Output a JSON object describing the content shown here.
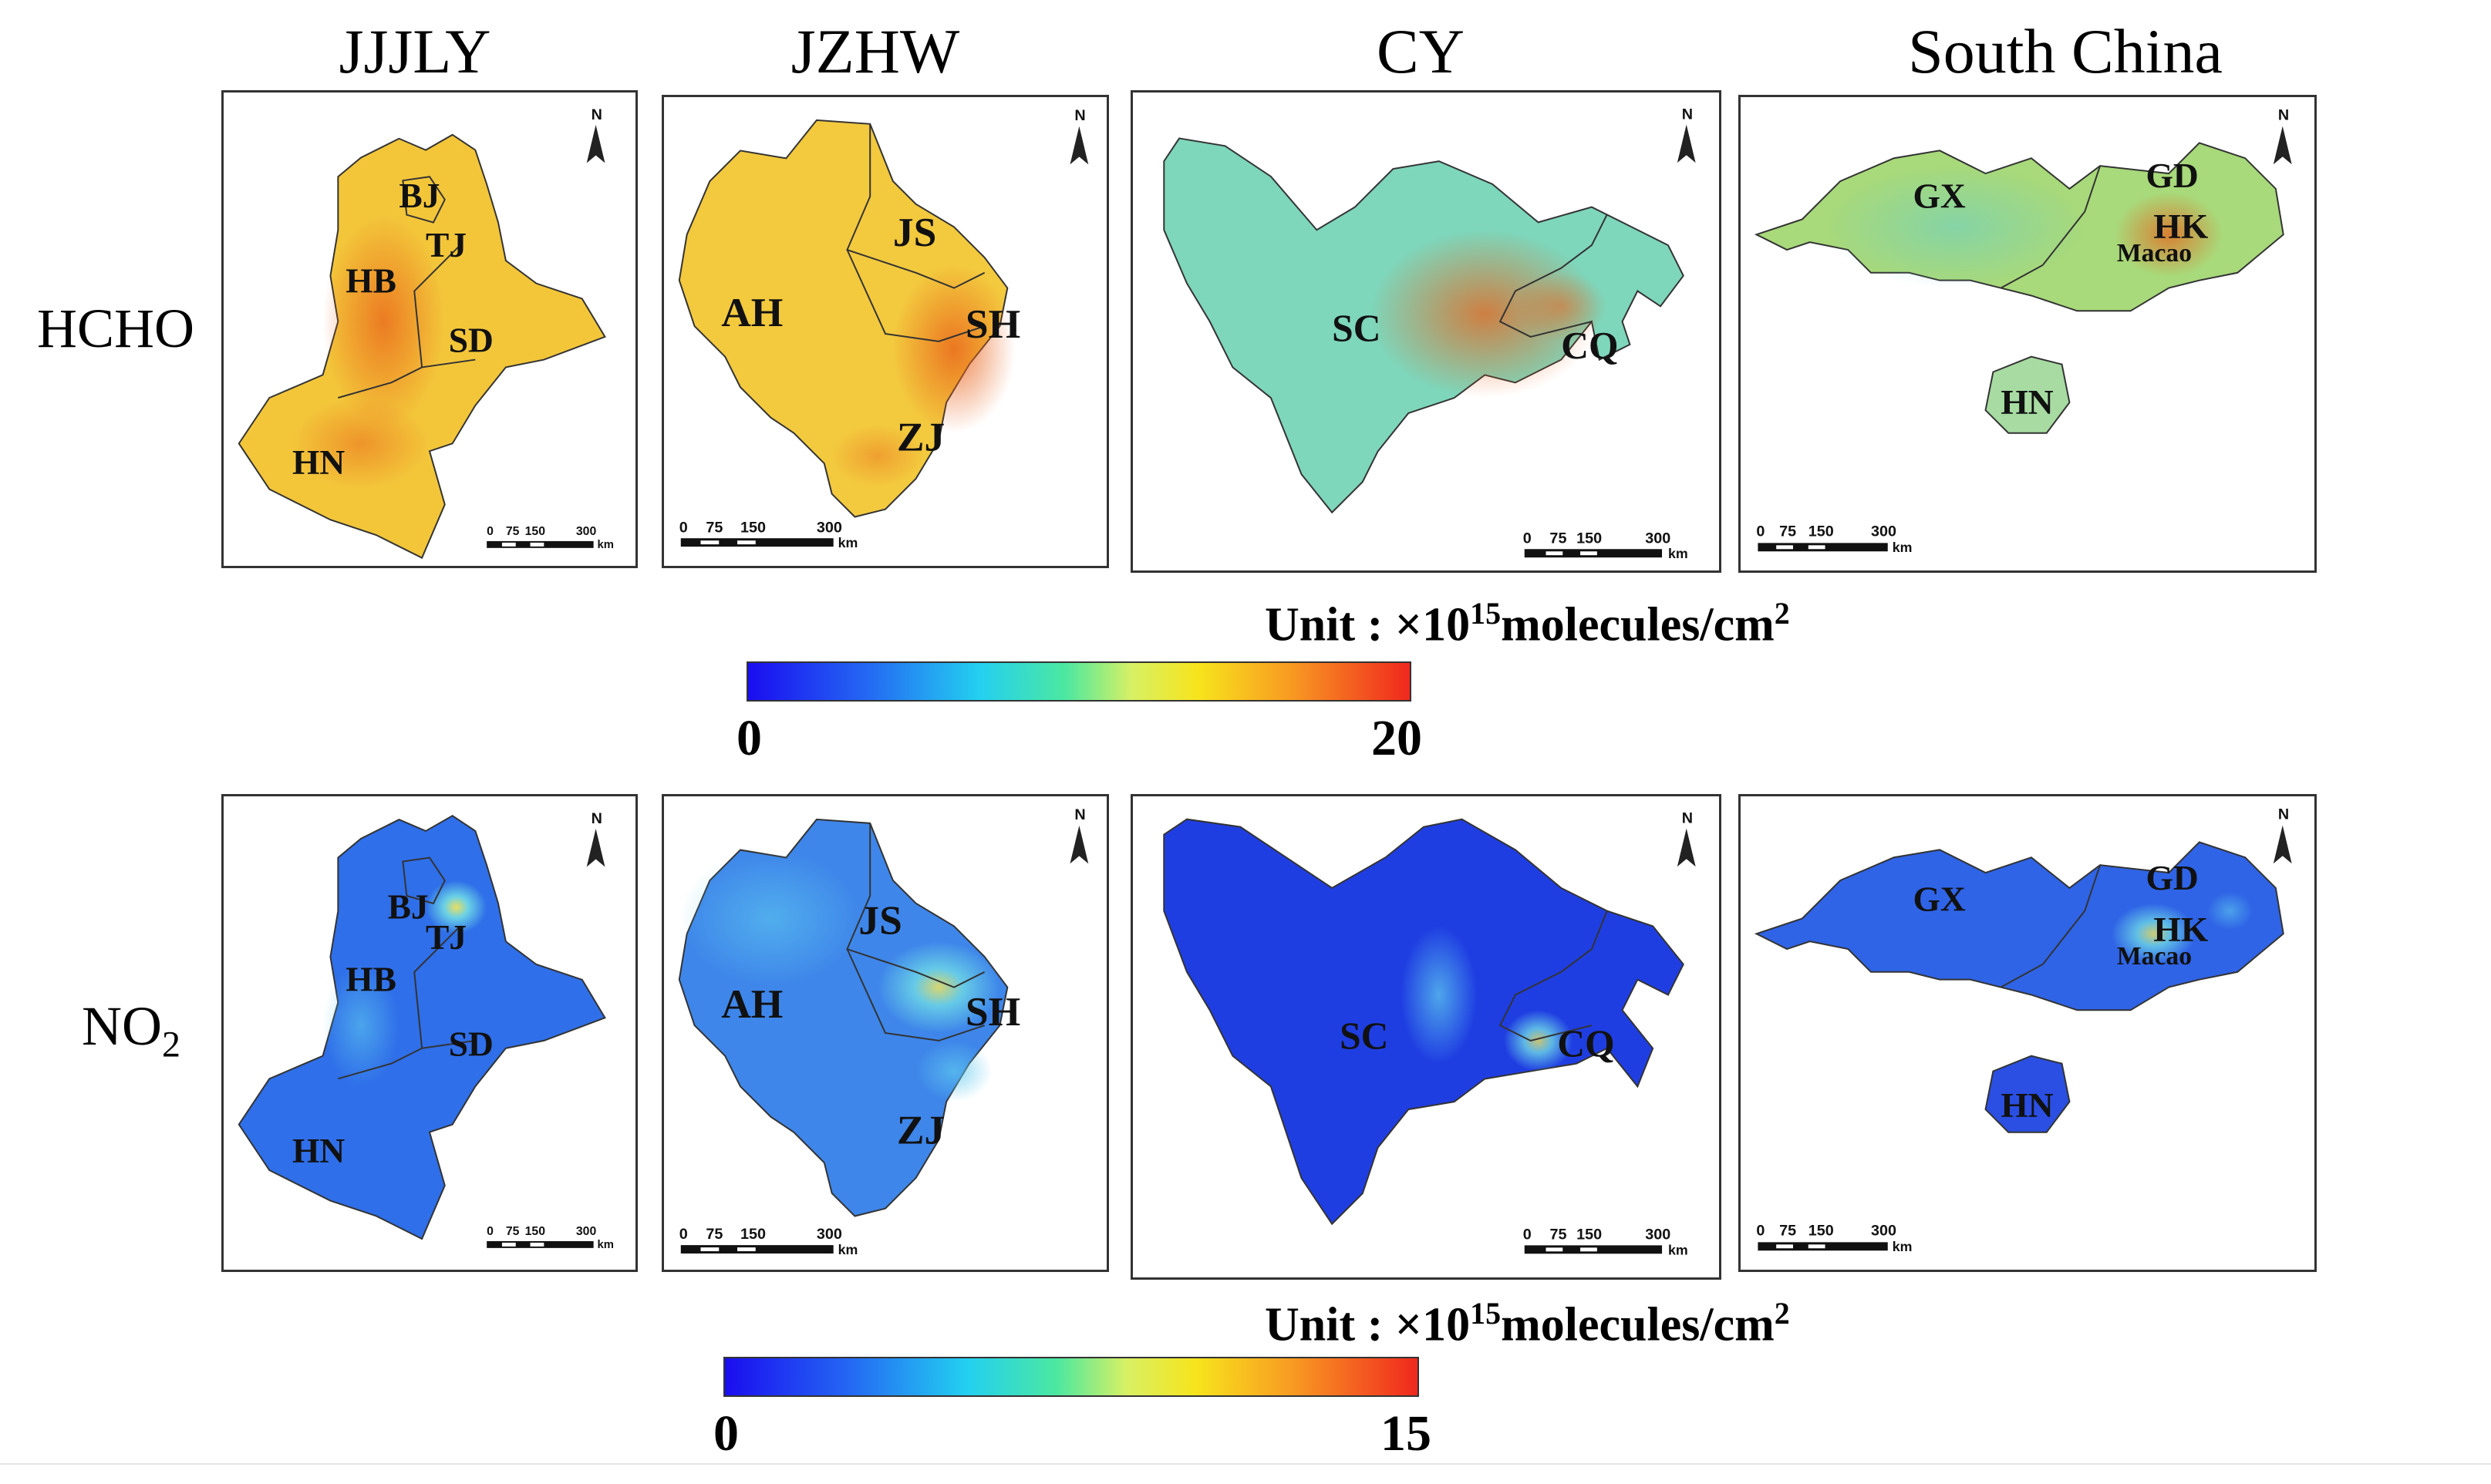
{
  "columns": [
    "JJJLY",
    "JZHW",
    "CY",
    "South China"
  ],
  "rows": [
    {
      "label": "HCHO"
    },
    {
      "label_main": "NO",
      "label_sub": "2"
    }
  ],
  "provinces": {
    "jjjly": [
      "BJ",
      "TJ",
      "HB",
      "SD",
      "HN"
    ],
    "jzhw": [
      "JS",
      "AH",
      "SH",
      "ZJ"
    ],
    "cy": [
      "SC",
      "CQ"
    ],
    "south_china": [
      "GX",
      "GD",
      "HK",
      "Macao",
      "HN"
    ]
  },
  "north_arrow": "N",
  "scale_bar": {
    "ticks": [
      "0",
      "75",
      "150",
      "300"
    ],
    "unit": "km"
  },
  "colorbars": [
    {
      "unit_prefix": "Unit : ×10",
      "unit_exp": "15",
      "unit_mid": "molecules/cm",
      "unit_exp2": "2",
      "min": "0",
      "max": "20"
    },
    {
      "unit_prefix": "Unit : ×10",
      "unit_exp": "15",
      "unit_mid": "molecules/cm",
      "unit_exp2": "2",
      "min": "0",
      "max": "15"
    }
  ],
  "colors": {
    "hcho_fill": "#f2c334",
    "hcho_hot": "#ec7a1c",
    "hcho_cool": "#74d2b4",
    "no2_fill": "#2f6fe9",
    "no2_dark": "#1e3fe0",
    "no2_light": "#5fc6ec"
  }
}
